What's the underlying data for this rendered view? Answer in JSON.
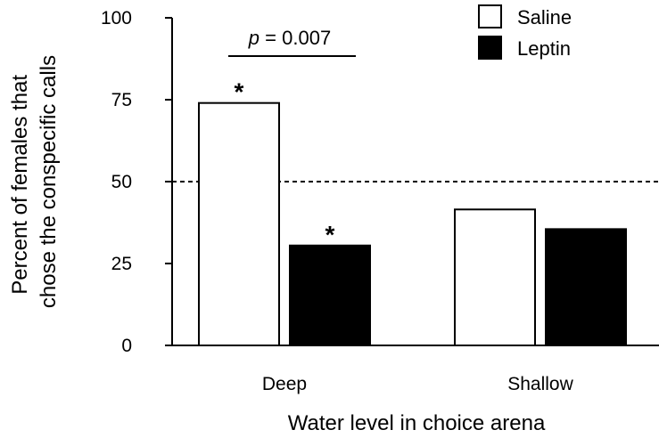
{
  "chart_data": {
    "type": "bar",
    "categories": [
      "Deep",
      "Shallow"
    ],
    "series": [
      {
        "name": "Saline",
        "values": [
          74,
          41.5
        ],
        "color": "#ffffff"
      },
      {
        "name": "Leptin",
        "values": [
          30.5,
          35.5
        ],
        "color": "#000000"
      }
    ],
    "xlabel": "Water level in choice arena",
    "ylabel_lines": [
      "Percent of females that",
      "chose the conspecific calls"
    ],
    "ylim": [
      0,
      100
    ],
    "yticks": [
      "0",
      "25",
      "50",
      "75",
      "100"
    ],
    "reference_line": {
      "y": 50,
      "style": "dashed"
    },
    "significance": {
      "p_symbol": "p",
      "p_value_text": " = 0.007",
      "between_category": "Deep"
    },
    "asterisks": [
      {
        "text": "*",
        "category": "Deep",
        "series": "Saline"
      },
      {
        "text": "*",
        "category": "Deep",
        "series": "Leptin"
      }
    ],
    "legend": {
      "position": "top-right"
    },
    "grid": false
  }
}
